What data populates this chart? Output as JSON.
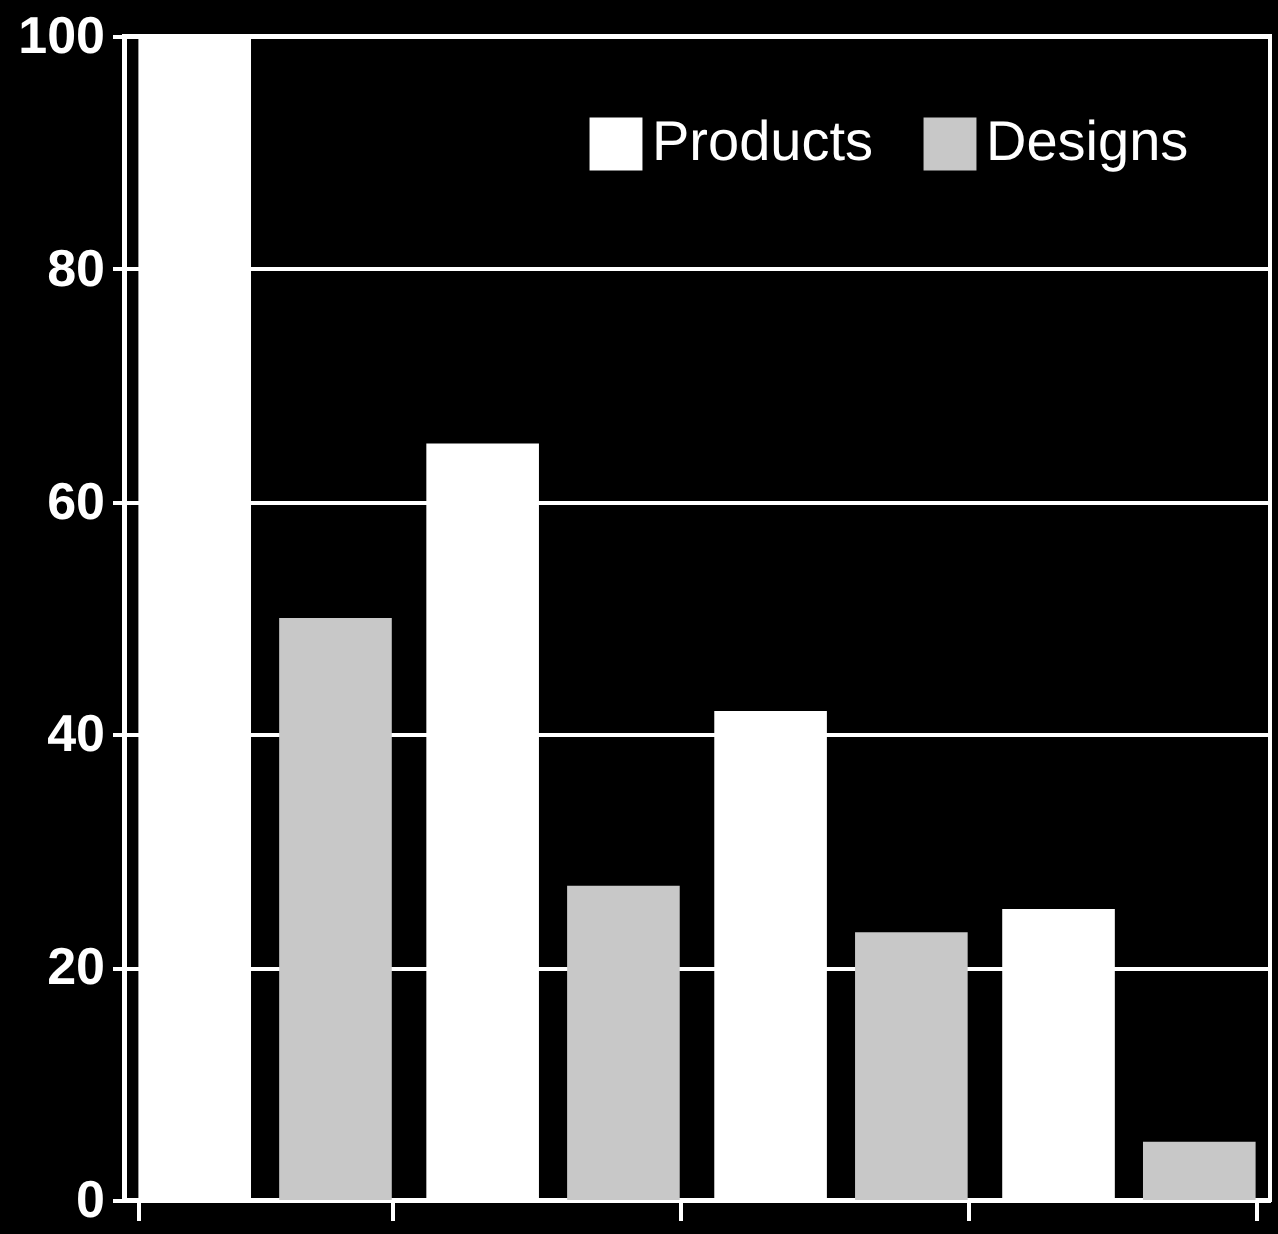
{
  "chart_data": {
    "type": "bar",
    "categories": [
      null,
      null,
      null,
      null
    ],
    "series": [
      {
        "name": "Products",
        "color": "#ffffff",
        "values": [
          100,
          65,
          42,
          25
        ]
      },
      {
        "name": "Designs",
        "color": "#c8c8c8",
        "values": [
          50,
          27,
          23,
          5
        ]
      }
    ],
    "ylim": [
      0,
      100
    ],
    "yticks": [
      0,
      20,
      40,
      60,
      80,
      100
    ],
    "grid": "y",
    "legend": "top right"
  }
}
